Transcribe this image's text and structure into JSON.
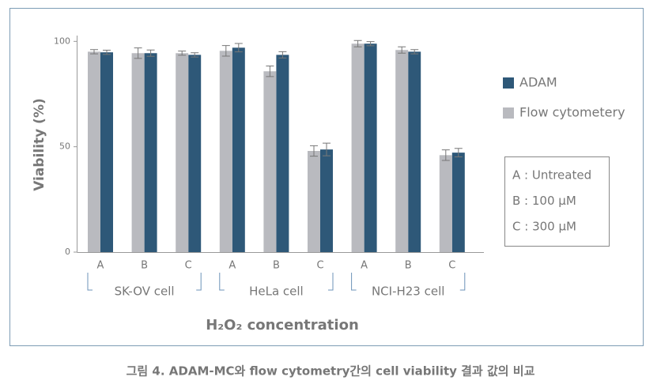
{
  "chart_data": {
    "type": "bar",
    "ylabel": "Viability (%)",
    "xlabel": "H₂O₂ concentration",
    "categories": [
      "A",
      "B",
      "C",
      "A",
      "B",
      "C",
      "A",
      "B",
      "C"
    ],
    "groups": [
      "SK-OV cell",
      "HeLa cell",
      "NCI-H23 cell"
    ],
    "series": [
      {
        "name": "ADAM",
        "color": "#2e5878",
        "values": [
          94.8,
          94.4,
          93.6,
          97,
          93.6,
          48.7,
          98.9,
          95.1,
          47.2
        ],
        "errors": [
          1,
          1.5,
          1,
          2,
          1.5,
          3,
          1,
          1,
          2
        ]
      },
      {
        "name": "Flow cytometery",
        "color": "#b9babf",
        "values": [
          95.1,
          94.4,
          94.4,
          95.5,
          85.8,
          48,
          98.9,
          95.9,
          46
        ],
        "errors": [
          1,
          2.5,
          1,
          2.5,
          2.5,
          2.5,
          1.5,
          1.5,
          2.5
        ]
      }
    ],
    "ylim": [
      0,
      102
    ],
    "yticks": [
      0,
      50,
      100
    ],
    "notes": [
      "A :  Untreated",
      "B : 100 μM",
      "C :  300 μM"
    ],
    "caption": "그림 4. ADAM-MC와 flow cytometry간의 cell viability 결과 값의 비교"
  }
}
